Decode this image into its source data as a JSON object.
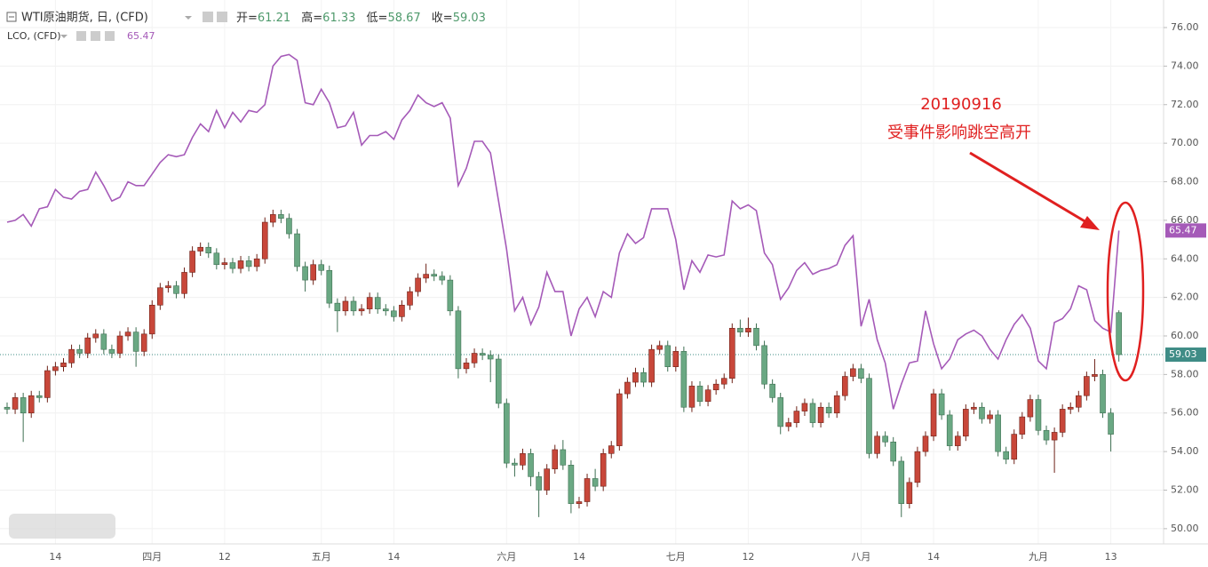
{
  "chart_data": {
    "type": "candlestick",
    "title": "WTI原油期货, 日, (CFD)",
    "header_labels": {
      "open": "开=",
      "high": "高=",
      "low": "低=",
      "close": "收="
    },
    "categories": [
      null,
      null,
      null,
      null,
      null,
      null,
      "14",
      null,
      null,
      null,
      null,
      null,
      null,
      null,
      null,
      null,
      null,
      null,
      "四月",
      null,
      null,
      null,
      null,
      null,
      null,
      null,
      null,
      "12",
      null,
      null,
      null,
      null,
      null,
      null,
      null,
      null,
      null,
      null,
      null,
      "五月",
      null,
      null,
      null,
      null,
      null,
      null,
      null,
      null,
      "14",
      null,
      null,
      null,
      null,
      null,
      null,
      null,
      null,
      null,
      null,
      null,
      null,
      null,
      "六月",
      null,
      null,
      null,
      null,
      null,
      null,
      null,
      null,
      "14",
      null,
      null,
      null,
      null,
      null,
      null,
      null,
      null,
      null,
      null,
      null,
      "七月",
      null,
      null,
      null,
      null,
      null,
      null,
      null,
      null,
      "12",
      null,
      null,
      null,
      null,
      null,
      null,
      null,
      null,
      null,
      null,
      null,
      null,
      null,
      "八月",
      null,
      null,
      null,
      null,
      null,
      null,
      null,
      null,
      "14",
      null,
      null,
      null,
      null,
      null,
      null,
      null,
      null,
      null,
      null,
      null,
      null,
      "九月",
      null,
      null,
      null,
      null,
      null,
      null,
      null,
      null,
      "13",
      null
    ],
    "open": [
      56.3,
      56.2,
      56.8,
      56.0,
      56.9,
      56.8,
      58.2,
      58.4,
      58.6,
      59.3,
      59.1,
      59.9,
      60.1,
      59.3,
      59.1,
      60.0,
      60.2,
      59.2,
      60.1,
      61.6,
      62.5,
      62.6,
      62.2,
      63.3,
      64.4,
      64.6,
      64.3,
      63.7,
      63.8,
      63.5,
      63.9,
      63.6,
      64.0,
      65.9,
      66.3,
      66.1,
      65.3,
      63.6,
      62.9,
      63.7,
      63.4,
      61.7,
      61.3,
      61.8,
      61.3,
      61.4,
      62.0,
      61.4,
      61.3,
      61.0,
      61.6,
      62.3,
      63.0,
      63.2,
      63.1,
      62.9,
      61.3,
      58.3,
      58.6,
      59.1,
      59.0,
      58.8,
      56.5,
      53.4,
      53.3,
      53.9,
      52.7,
      52.0,
      53.1,
      54.1,
      53.3,
      51.3,
      51.4,
      52.6,
      52.2,
      53.9,
      54.3,
      57.0,
      57.6,
      58.1,
      57.6,
      59.3,
      59.5,
      58.4,
      59.2,
      56.3,
      57.4,
      56.6,
      57.2,
      57.5,
      57.8,
      60.4,
      60.2,
      60.4,
      59.5,
      57.5,
      56.8,
      55.3,
      55.5,
      56.1,
      56.5,
      55.5,
      56.3,
      56.0,
      56.9,
      57.9,
      58.3,
      57.8,
      53.9,
      54.8,
      54.5,
      53.5,
      51.3,
      52.4,
      54.0,
      54.8,
      57.0,
      55.9,
      54.3,
      54.8,
      56.2,
      56.3,
      55.7,
      55.9,
      54.0,
      53.6,
      54.9,
      55.8,
      56.7,
      55.1,
      54.6,
      55.0,
      56.2,
      56.3,
      56.9,
      57.9,
      58.0,
      56.0,
      61.21
    ],
    "high": [
      56.55,
      57.05,
      57.05,
      57.15,
      57.15,
      58.45,
      58.65,
      58.85,
      59.55,
      59.55,
      60.15,
      60.35,
      60.35,
      59.55,
      60.25,
      60.45,
      60.45,
      60.35,
      61.85,
      62.75,
      62.85,
      62.85,
      63.55,
      64.65,
      64.85,
      64.85,
      64.55,
      64.05,
      64.05,
      64.15,
      64.15,
      64.25,
      66.15,
      66.55,
      66.55,
      66.35,
      65.55,
      63.85,
      63.95,
      63.95,
      63.65,
      61.95,
      62.05,
      62.05,
      61.65,
      62.25,
      62.25,
      61.65,
      61.55,
      61.85,
      62.55,
      63.25,
      63.75,
      63.45,
      63.35,
      63.15,
      61.55,
      58.85,
      59.35,
      59.35,
      59.25,
      59.05,
      56.75,
      53.65,
      54.15,
      54.15,
      52.95,
      53.35,
      54.35,
      54.6,
      53.55,
      51.65,
      52.85,
      53.1,
      54.15,
      54.55,
      57.25,
      57.85,
      58.35,
      58.35,
      59.55,
      59.75,
      59.75,
      59.45,
      59.45,
      57.65,
      57.65,
      57.45,
      57.75,
      58.05,
      60.65,
      60.85,
      60.95,
      60.65,
      59.75,
      57.75,
      57.05,
      55.75,
      56.35,
      56.75,
      56.75,
      56.55,
      56.55,
      57.15,
      58.15,
      58.55,
      58.55,
      58.05,
      55.05,
      55.05,
      54.75,
      53.75,
      52.65,
      54.25,
      55.05,
      57.25,
      57.25,
      56.15,
      55.05,
      56.45,
      56.55,
      56.55,
      56.15,
      56.15,
      54.25,
      55.15,
      56.05,
      56.95,
      56.95,
      55.35,
      55.25,
      56.45,
      56.55,
      57.15,
      58.15,
      58.8,
      58.25,
      56.25,
      61.33
    ],
    "low": [
      55.95,
      55.95,
      54.5,
      55.75,
      56.55,
      56.55,
      57.95,
      58.15,
      58.35,
      58.85,
      58.85,
      59.65,
      59.05,
      58.85,
      58.85,
      59.75,
      58.4,
      58.95,
      59.85,
      61.35,
      62.25,
      61.95,
      61.95,
      63.05,
      64.15,
      64.05,
      63.45,
      63.45,
      63.25,
      63.25,
      63.35,
      63.35,
      63.75,
      65.65,
      65.85,
      65.05,
      63.35,
      62.3,
      62.65,
      63.15,
      61.45,
      60.2,
      61.05,
      61.05,
      61.05,
      61.15,
      61.15,
      61.05,
      60.75,
      60.75,
      61.35,
      62.05,
      62.75,
      62.85,
      62.65,
      61.05,
      57.8,
      58.05,
      58.35,
      58.75,
      57.6,
      56.25,
      53.15,
      52.7,
      53.05,
      52.2,
      50.6,
      51.75,
      52.85,
      53.05,
      50.8,
      51.05,
      51.15,
      51.95,
      51.95,
      53.65,
      54.05,
      56.75,
      57.35,
      57.35,
      57.35,
      59.05,
      58.15,
      58.15,
      56.05,
      56.05,
      56.35,
      56.35,
      56.95,
      57.25,
      57.55,
      59.95,
      59.95,
      59.25,
      57.25,
      56.55,
      54.9,
      55.05,
      55.25,
      55.85,
      55.25,
      55.25,
      55.75,
      55.75,
      56.65,
      57.65,
      57.55,
      53.65,
      53.65,
      54.25,
      53.25,
      50.6,
      51.05,
      52.15,
      53.75,
      54.55,
      55.65,
      54.05,
      54.05,
      54.55,
      55.95,
      55.45,
      55.45,
      53.75,
      53.35,
      53.35,
      54.65,
      55.55,
      54.85,
      54.35,
      52.9,
      54.75,
      55.95,
      56.05,
      56.65,
      57.65,
      55.75,
      54.0,
      58.67
    ],
    "close": [
      56.2,
      56.8,
      56.0,
      56.9,
      56.8,
      58.2,
      58.4,
      58.6,
      59.3,
      59.1,
      59.9,
      60.1,
      59.3,
      59.1,
      60.0,
      60.2,
      59.2,
      60.1,
      61.6,
      62.5,
      62.6,
      62.2,
      63.3,
      64.4,
      64.6,
      64.3,
      63.7,
      63.8,
      63.5,
      63.9,
      63.6,
      64.0,
      65.9,
      66.3,
      66.1,
      65.3,
      63.6,
      62.9,
      63.7,
      63.4,
      61.7,
      61.3,
      61.8,
      61.3,
      61.4,
      62.0,
      61.4,
      61.3,
      61.0,
      61.6,
      62.3,
      63.0,
      63.2,
      63.1,
      62.9,
      61.3,
      58.3,
      58.6,
      59.1,
      59.0,
      58.8,
      56.5,
      53.4,
      53.3,
      53.9,
      52.7,
      52.0,
      53.1,
      54.1,
      53.3,
      51.3,
      51.4,
      52.6,
      52.2,
      53.9,
      54.3,
      57.0,
      57.6,
      58.1,
      57.6,
      59.3,
      59.5,
      58.4,
      59.2,
      56.3,
      57.4,
      56.6,
      57.2,
      57.5,
      57.8,
      60.4,
      60.2,
      60.4,
      59.5,
      57.5,
      56.8,
      55.3,
      55.5,
      56.1,
      56.5,
      55.5,
      56.3,
      56.0,
      56.9,
      57.9,
      58.3,
      57.8,
      53.9,
      54.8,
      54.5,
      53.5,
      51.3,
      52.4,
      54.0,
      54.8,
      57.0,
      55.9,
      54.3,
      54.8,
      56.2,
      56.3,
      55.7,
      55.9,
      54.0,
      53.6,
      54.9,
      55.8,
      56.7,
      55.1,
      54.6,
      55.0,
      56.2,
      56.3,
      56.9,
      57.9,
      58.0,
      56.0,
      54.9,
      59.03
    ],
    "up_color": "#c8473a",
    "down_color": "#6aa883",
    "overlay": {
      "type": "line",
      "name": "LCO, (CFD)",
      "color": "#a55ab8",
      "values": [
        65.9,
        66.0,
        66.3,
        65.7,
        66.6,
        66.7,
        67.6,
        67.2,
        67.1,
        67.5,
        67.6,
        68.5,
        67.8,
        67.0,
        67.2,
        68.0,
        67.8,
        67.8,
        68.4,
        69.0,
        69.4,
        69.3,
        69.4,
        70.3,
        71.0,
        70.6,
        71.7,
        70.8,
        71.6,
        71.1,
        71.7,
        71.6,
        72.0,
        74.0,
        74.5,
        74.6,
        74.3,
        72.1,
        72.0,
        72.8,
        72.1,
        70.8,
        70.9,
        71.6,
        69.9,
        70.4,
        70.4,
        70.6,
        70.2,
        71.2,
        71.7,
        72.5,
        72.1,
        71.9,
        72.1,
        71.3,
        67.8,
        68.7,
        70.1,
        70.1,
        69.5,
        67.0,
        64.5,
        61.3,
        62.0,
        60.6,
        61.5,
        63.3,
        62.3,
        62.3,
        60.0,
        61.4,
        62.0,
        61.0,
        62.3,
        62.0,
        64.3,
        65.3,
        64.8,
        65.1,
        66.6,
        66.6,
        66.6,
        65.0,
        62.4,
        63.9,
        63.3,
        64.2,
        64.1,
        64.2,
        67.0,
        66.6,
        66.8,
        66.5,
        64.3,
        63.7,
        61.9,
        62.5,
        63.4,
        63.8,
        63.2,
        63.4,
        63.5,
        63.7,
        64.7,
        65.2,
        60.5,
        61.9,
        59.8,
        58.6,
        56.2,
        57.5,
        58.6,
        58.7,
        61.3,
        59.6,
        58.3,
        58.8,
        59.8,
        60.1,
        60.3,
        60.0,
        59.3,
        58.8,
        59.8,
        60.6,
        61.1,
        60.4,
        58.7,
        58.3,
        60.7,
        60.9,
        61.4,
        62.6,
        62.4,
        60.8,
        60.4,
        60.2,
        65.47
      ]
    },
    "last_price_color": "#3f8c86",
    "ylim": [
      49.21,
      77.43
    ],
    "yticks": [
      {
        "value": 50,
        "label": "50.00"
      },
      {
        "value": 52,
        "label": "52.00"
      },
      {
        "value": 54,
        "label": "54.00"
      },
      {
        "value": 56,
        "label": "56.00"
      },
      {
        "value": 58,
        "label": "58.00"
      },
      {
        "value": 60,
        "label": "60.00"
      },
      {
        "value": 62,
        "label": "62.00"
      },
      {
        "value": 64,
        "label": "64.00"
      },
      {
        "value": 66,
        "label": "66.00"
      },
      {
        "value": 68,
        "label": "68.00"
      },
      {
        "value": 70,
        "label": "70.00"
      },
      {
        "value": 72,
        "label": "72.00"
      },
      {
        "value": 74,
        "label": "74.00"
      },
      {
        "value": 76,
        "label": "76.00"
      }
    ],
    "grid": true,
    "annotations": [
      "20190916",
      "受事件影响跳空高开"
    ]
  }
}
